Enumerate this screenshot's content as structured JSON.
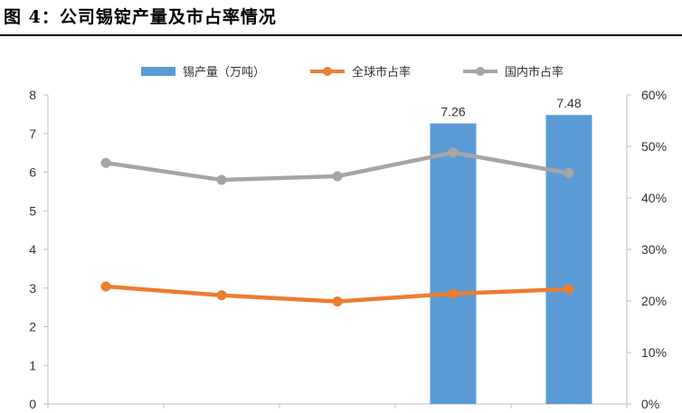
{
  "figure": {
    "title": "图 4：公司锡锭产量及市占率情况"
  },
  "chart_data": {
    "type": "bar+line",
    "categories": [
      "",
      "",
      "",
      "",
      ""
    ],
    "series": [
      {
        "name": "锡产量（万吨）",
        "type": "bar",
        "axis": "left",
        "color": "#5b9bd5",
        "values": [
          null,
          null,
          null,
          7.26,
          7.48
        ]
      },
      {
        "name": "全球市占率",
        "type": "line",
        "axis": "right",
        "color": "#ed7d31",
        "values": [
          0.228,
          0.211,
          0.199,
          0.214,
          0.223
        ]
      },
      {
        "name": "国内市占率",
        "type": "line",
        "axis": "right",
        "color": "#a5a5a5",
        "values": [
          0.468,
          0.435,
          0.442,
          0.488,
          0.448
        ]
      }
    ],
    "data_labels": [
      "7.26",
      "7.48"
    ],
    "y_left": {
      "ylim": [
        0,
        8
      ],
      "ticks": [
        "0",
        "1",
        "2",
        "3",
        "4",
        "5",
        "6",
        "7",
        "8"
      ]
    },
    "y_right": {
      "ylim": [
        0,
        0.6
      ],
      "ticks": [
        "0%",
        "10%",
        "20%",
        "30%",
        "40%",
        "50%",
        "60%"
      ]
    },
    "legend_position": "top"
  }
}
